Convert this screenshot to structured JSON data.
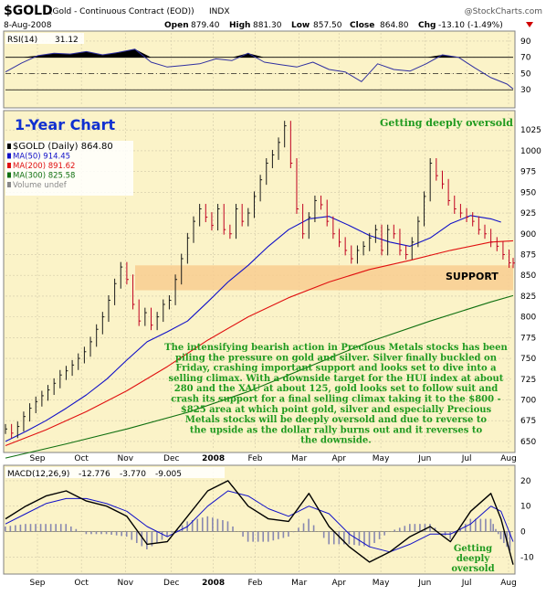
{
  "header": {
    "symbol": "$GOLD",
    "name": "(Gold - Continuous Contract (EOD))",
    "exchange": "INDX",
    "date": "8-Aug-2008",
    "watermark": "@StockCharts.com",
    "open_label": "Open",
    "open": "879.40",
    "high_label": "High",
    "high": "881.30",
    "low_label": "Low",
    "low": "857.50",
    "close_label": "Close",
    "close": "864.80",
    "chg_label": "Chg",
    "chg": "-13.10 (-1.49%)",
    "chg_icon": "down-triangle-icon"
  },
  "annotations": {
    "period": "1-Year Chart",
    "oversold_top": "Getting deeply oversold",
    "support": "SUPPORT",
    "oversold_macd": [
      "Getting",
      "deeply",
      "oversold"
    ],
    "commentary": [
      "The intensifying bearish action in Precious Metals stocks has been",
      "piling the pressure on gold and silver. Silver finally buckled on",
      "Friday, crashing important support and looks set to dive into a",
      "selling climax. With a downside target for the HUI index at about",
      "280 and the XAU at about 125, gold looks set to follow suit and",
      "crash its support for a final selling climax taking it to the $800 -",
      "$825 area at which point gold, silver and especially Precious",
      "Metals stocks will be deeply oversold and due to reverse to",
      "the upside as the dollar rally burns out and it reverses to",
      "the downside."
    ]
  },
  "colors": {
    "panel_bg": "#fbf3c8",
    "grid": "#d0c8a8",
    "price_up": "#1a1a1a",
    "price_down": "#c00020",
    "ma50": "#1010c8",
    "ma200": "#e01010",
    "ma300": "#107010",
    "rsi": "#3030a0",
    "support_band": "#f8cc90",
    "annotation_green": "#1f9a1f",
    "title_blue": "#1030d0",
    "macd_hist": "#8888b0"
  },
  "chart_data": [
    {
      "type": "line",
      "panel": "rsi",
      "label": "RSI(14)",
      "value_label": "31.12",
      "ylim": [
        10,
        100
      ],
      "yticks": [
        30,
        50,
        70,
        90
      ],
      "overbought": 70,
      "oversold": 30,
      "midline": 50,
      "series": [
        {
          "name": "RSI(14)",
          "x": [
            0,
            8,
            16,
            24,
            32,
            40,
            48,
            56,
            64,
            72,
            80,
            88,
            96,
            104,
            112,
            120,
            128,
            136,
            144,
            152,
            160,
            168,
            176,
            184,
            192,
            200,
            208,
            216,
            224,
            232,
            240,
            248,
            251
          ],
          "values": [
            52,
            63,
            72,
            75,
            74,
            77,
            73,
            76,
            80,
            64,
            58,
            60,
            62,
            68,
            66,
            75,
            64,
            61,
            58,
            64,
            55,
            52,
            40,
            62,
            55,
            53,
            62,
            73,
            70,
            57,
            45,
            37,
            31
          ]
        }
      ]
    },
    {
      "type": "line",
      "panel": "price",
      "title": "$GOLD (Daily)",
      "value_label": "864.80",
      "ylim": [
        640,
        1045
      ],
      "yticks": [
        650,
        675,
        700,
        725,
        750,
        775,
        800,
        825,
        850,
        875,
        900,
        925,
        950,
        975,
        1000,
        1025
      ],
      "x_tick_labels": [
        "Sep",
        "Oct",
        "Nov",
        "Dec",
        "2008",
        "Feb",
        "Mar",
        "Apr",
        "May",
        "Jun",
        "Jul",
        "Aug"
      ],
      "x_tick_positions": [
        11,
        32,
        53,
        75,
        95,
        115,
        136,
        155,
        175,
        196,
        216,
        236
      ],
      "support_band": [
        832,
        862
      ],
      "legend": [
        {
          "label": "$GOLD (Daily)",
          "value": "864.80",
          "key": "price"
        },
        {
          "label": "MA(50)",
          "value": "914.45",
          "key": "ma50"
        },
        {
          "label": "MA(200)",
          "value": "891.62",
          "key": "ma200"
        },
        {
          "label": "MA(300)",
          "value": "825.58",
          "key": "ma300"
        },
        {
          "label": "Volume undef",
          "value": "",
          "key": "volume"
        }
      ],
      "series": [
        {
          "name": "$GOLD",
          "key": "price",
          "x": [
            0,
            3,
            6,
            9,
            12,
            15,
            18,
            21,
            24,
            27,
            30,
            33,
            36,
            39,
            42,
            45,
            48,
            51,
            54,
            57,
            60,
            63,
            66,
            69,
            72,
            75,
            78,
            81,
            84,
            87,
            90,
            93,
            96,
            99,
            102,
            105,
            108,
            111,
            114,
            117,
            120,
            123,
            126,
            129,
            132,
            135,
            138,
            141,
            144,
            147,
            150,
            153,
            156,
            159,
            162,
            165,
            168,
            171,
            174,
            177,
            180,
            183,
            186,
            189,
            192,
            195,
            198,
            201,
            204,
            207,
            210,
            213,
            216,
            219,
            222,
            225,
            228,
            231,
            234,
            237,
            240,
            243,
            246,
            249,
            251
          ],
          "values": [
            665,
            660,
            668,
            680,
            690,
            698,
            705,
            712,
            720,
            730,
            735,
            742,
            750,
            758,
            770,
            785,
            800,
            820,
            840,
            860,
            845,
            815,
            795,
            805,
            790,
            800,
            815,
            820,
            845,
            870,
            895,
            915,
            930,
            920,
            910,
            930,
            905,
            900,
            930,
            915,
            925,
            945,
            965,
            985,
            995,
            1010,
            1030,
            985,
            930,
            900,
            920,
            940,
            935,
            915,
            900,
            890,
            880,
            870,
            880,
            885,
            895,
            905,
            880,
            905,
            900,
            880,
            875,
            890,
            915,
            945,
            985,
            970,
            960,
            940,
            930,
            925,
            920,
            915,
            905,
            900,
            890,
            885,
            875,
            865,
            864.8
          ]
        },
        {
          "name": "MA(50)",
          "key": "ma50",
          "x": [
            0,
            10,
            20,
            30,
            40,
            50,
            60,
            70,
            80,
            90,
            100,
            110,
            120,
            130,
            140,
            150,
            160,
            170,
            180,
            190,
            200,
            210,
            220,
            230,
            240,
            245
          ],
          "values": [
            650,
            662,
            675,
            690,
            706,
            725,
            748,
            770,
            782,
            795,
            818,
            842,
            862,
            885,
            905,
            918,
            921,
            910,
            898,
            890,
            885,
            895,
            912,
            922,
            918,
            914
          ]
        },
        {
          "name": "MA(200)",
          "key": "ma200",
          "x": [
            0,
            20,
            40,
            60,
            80,
            100,
            120,
            140,
            160,
            180,
            200,
            220,
            240,
            251
          ],
          "values": [
            645,
            664,
            686,
            711,
            740,
            772,
            800,
            823,
            842,
            857,
            868,
            880,
            890,
            891.6
          ]
        },
        {
          "name": "MA(300)",
          "key": "ma300",
          "x": [
            0,
            30,
            60,
            90,
            120,
            150,
            180,
            210,
            240,
            251
          ],
          "values": [
            630,
            647,
            665,
            685,
            710,
            740,
            770,
            795,
            818,
            825.6
          ]
        }
      ]
    },
    {
      "type": "line",
      "panel": "macd",
      "label": "MACD(12,26,9)",
      "values_label": [
        "-12.776",
        "-3.770",
        "-9.005"
      ],
      "ylim": [
        -16,
        25
      ],
      "yticks": [
        -10,
        0,
        10,
        20
      ],
      "x_tick_labels": [
        "Sep",
        "Oct",
        "Nov",
        "Dec",
        "2008",
        "Feb",
        "Mar",
        "Apr",
        "May",
        "Jun",
        "Jul",
        "Aug"
      ],
      "series": [
        {
          "name": "MACD",
          "key": "macd",
          "x": [
            0,
            10,
            20,
            30,
            40,
            50,
            60,
            70,
            80,
            90,
            100,
            110,
            120,
            130,
            140,
            150,
            160,
            170,
            180,
            190,
            200,
            210,
            220,
            230,
            240,
            245,
            251
          ],
          "values": [
            5,
            10,
            14,
            16,
            12,
            10,
            6,
            -5,
            -4,
            6,
            16,
            20,
            10,
            5,
            4,
            15,
            2,
            -6,
            -12,
            -8,
            -2,
            2,
            -4,
            8,
            15,
            5,
            -13
          ]
        },
        {
          "name": "Signal",
          "key": "signal",
          "x": [
            0,
            10,
            20,
            30,
            40,
            50,
            60,
            70,
            80,
            90,
            100,
            110,
            120,
            130,
            140,
            150,
            160,
            170,
            180,
            190,
            200,
            210,
            220,
            230,
            240,
            245,
            251
          ],
          "values": [
            3,
            7,
            11,
            13,
            13,
            11,
            8,
            2,
            -2,
            2,
            10,
            16,
            14,
            9,
            6,
            10,
            7,
            -1,
            -6,
            -8,
            -5,
            -1,
            -1,
            3,
            10,
            8,
            -4
          ]
        }
      ]
    }
  ]
}
